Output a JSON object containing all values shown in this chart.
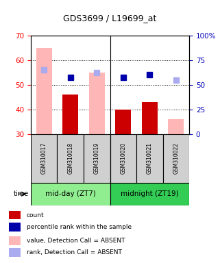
{
  "title": "GDS3699 / L19699_at",
  "samples": [
    "GSM310017",
    "GSM310018",
    "GSM310019",
    "GSM310020",
    "GSM310021",
    "GSM310022"
  ],
  "groups": [
    {
      "label": "mid-day (ZT7)",
      "color": "#90EE90"
    },
    {
      "label": "midnight (ZT19)",
      "color": "#33CC55"
    }
  ],
  "left_ylim": [
    30,
    70
  ],
  "left_yticks": [
    30,
    40,
    50,
    60,
    70
  ],
  "right_ylim": [
    0,
    100
  ],
  "right_yticks": [
    0,
    25,
    50,
    75,
    100
  ],
  "right_yticklabels": [
    "0",
    "25",
    "50",
    "75",
    "100%"
  ],
  "bar_values_absent": [
    65,
    null,
    55,
    null,
    null,
    36
  ],
  "bar_values_present": [
    null,
    46,
    null,
    40,
    43,
    null
  ],
  "rank_absent_left": [
    56,
    null,
    55,
    null,
    null,
    52
  ],
  "rank_present_left": [
    null,
    53,
    null,
    53,
    54,
    null
  ],
  "bar_absent_color": "#FFB6B6",
  "bar_present_color": "#CC0000",
  "rank_absent_color": "#AAAAEE",
  "rank_present_color": "#0000AA",
  "left_tick_color": "#FF0000",
  "right_tick_color": "#0000BB",
  "bar_width": 0.6,
  "legend_items": [
    {
      "color": "#CC0000",
      "label": "count"
    },
    {
      "color": "#0000AA",
      "label": "percentile rank within the sample"
    },
    {
      "color": "#FFB6B6",
      "label": "value, Detection Call = ABSENT"
    },
    {
      "color": "#AAAAEE",
      "label": "rank, Detection Call = ABSENT"
    }
  ]
}
